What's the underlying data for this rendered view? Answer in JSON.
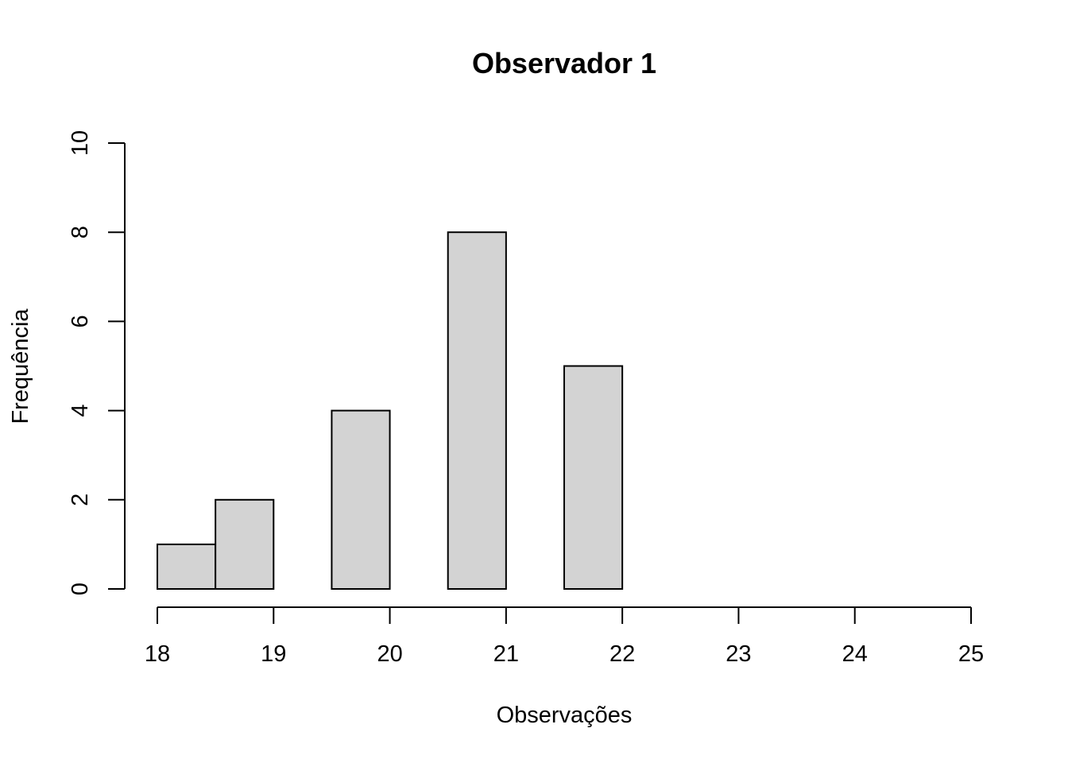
{
  "chart_data": {
    "type": "bar",
    "subtype": "histogram",
    "title": "Observador 1",
    "xlabel": "Observações",
    "ylabel": "Frequência",
    "bins": [
      {
        "start": 18.0,
        "end": 18.5,
        "count": 1
      },
      {
        "start": 18.5,
        "end": 19.0,
        "count": 2
      },
      {
        "start": 19.0,
        "end": 19.5,
        "count": 0
      },
      {
        "start": 19.5,
        "end": 20.0,
        "count": 4
      },
      {
        "start": 20.0,
        "end": 20.5,
        "count": 0
      },
      {
        "start": 20.5,
        "end": 21.0,
        "count": 8
      },
      {
        "start": 21.0,
        "end": 21.5,
        "count": 0
      },
      {
        "start": 21.5,
        "end": 22.0,
        "count": 5
      }
    ],
    "xlim": [
      18,
      25
    ],
    "ylim": [
      0,
      10
    ],
    "xticks": [
      "18",
      "19",
      "20",
      "21",
      "22",
      "23",
      "24",
      "25"
    ],
    "yticks": [
      "0",
      "2",
      "4",
      "6",
      "8",
      "10"
    ],
    "grid": false,
    "bar_color": "#d3d3d3",
    "edge_color": "#000000"
  }
}
